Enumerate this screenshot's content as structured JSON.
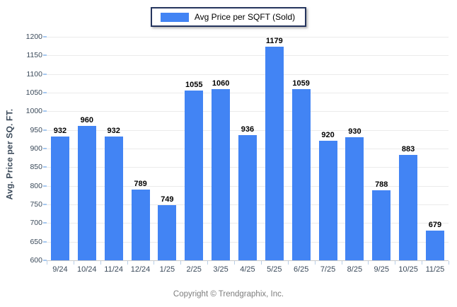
{
  "legend": {
    "label": "Avg Price per SQFT (Sold)",
    "swatch_color": "#4284f4"
  },
  "footer": {
    "text": "Copyright © Trendgraphix, Inc."
  },
  "colors": {
    "bar": "#4284f4",
    "gridline": "#ebebeb",
    "axis_line": "#c9c9c9",
    "axis_text": "#3b4a5a",
    "legend_border": "#25355e"
  },
  "chart_data": {
    "type": "bar",
    "title": "",
    "categories": [
      "9/24",
      "10/24",
      "11/24",
      "12/24",
      "1/25",
      "2/25",
      "3/25",
      "4/25",
      "5/25",
      "6/25",
      "7/25",
      "8/25",
      "9/25",
      "10/25",
      "11/25"
    ],
    "values": [
      932,
      960,
      932,
      789,
      749,
      1055,
      1060,
      936,
      1179,
      1059,
      920,
      930,
      788,
      883,
      679
    ],
    "series_name": "Avg Price per SQFT (Sold)",
    "xlabel": "",
    "ylabel": "Avg. Price per SQ. FT.",
    "ylim": [
      600,
      1200
    ],
    "ytick_step": 50,
    "grid": true,
    "value_labels": true,
    "legend_position": "top-center"
  }
}
